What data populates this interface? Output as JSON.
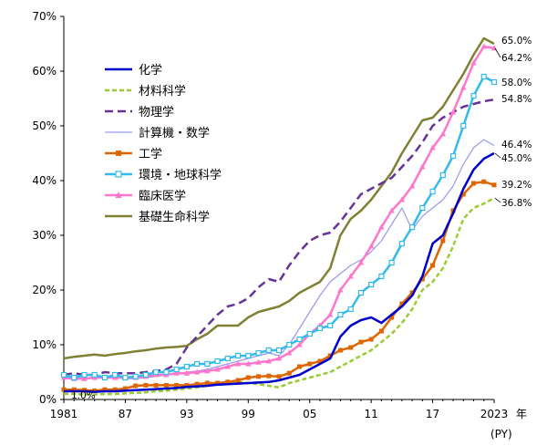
{
  "chart_data": {
    "type": "line",
    "title": "",
    "xlabel": "年",
    "x_unit": "(PY)",
    "ylabel": "",
    "ylim": [
      0,
      70
    ],
    "yticks": [
      "0%",
      "10%",
      "20%",
      "30%",
      "40%",
      "50%",
      "60%",
      "70%"
    ],
    "xtick_labels": [
      "1981",
      "87",
      "93",
      "99",
      "05",
      "11",
      "17",
      "2023"
    ],
    "x": [
      1981,
      1982,
      1983,
      1984,
      1985,
      1986,
      1987,
      1988,
      1989,
      1990,
      1991,
      1992,
      1993,
      1994,
      1995,
      1996,
      1997,
      1998,
      1999,
      2000,
      2001,
      2002,
      2003,
      2004,
      2005,
      2006,
      2007,
      2008,
      2009,
      2010,
      2011,
      2012,
      2013,
      2014,
      2015,
      2016,
      2017,
      2018,
      2019,
      2020,
      2021,
      2022,
      2023
    ],
    "annotation": "1.0%",
    "series": [
      {
        "name": "化学",
        "color": "#0000cc",
        "dash": "",
        "marker": "none",
        "end_label": "45.0%",
        "values": [
          1.5,
          1.5,
          1.5,
          1.4,
          1.5,
          1.5,
          1.6,
          1.7,
          1.8,
          1.9,
          2.0,
          2.1,
          2.3,
          2.4,
          2.5,
          2.7,
          2.8,
          2.9,
          3.0,
          3.1,
          3.2,
          3.5,
          4.0,
          4.5,
          5.5,
          6.5,
          7.5,
          11.5,
          13.5,
          14.5,
          15.0,
          14.0,
          15.5,
          17.0,
          19.0,
          22.5,
          28.5,
          30.0,
          34.0,
          38.5,
          42.0,
          44.0,
          45.0
        ]
      },
      {
        "name": "材料科学",
        "color": "#99cc33",
        "dash": "5,3",
        "marker": "none",
        "end_label": "36.8%",
        "values": [
          1.0,
          1.0,
          0.9,
          0.9,
          1.0,
          1.0,
          1.1,
          1.2,
          1.3,
          1.5,
          1.6,
          1.8,
          2.0,
          2.2,
          2.5,
          2.8,
          3.0,
          3.2,
          3.0,
          2.8,
          2.5,
          2.2,
          3.0,
          3.5,
          4.0,
          4.5,
          5.0,
          6.0,
          7.0,
          8.0,
          9.0,
          10.5,
          12.0,
          14.0,
          16.5,
          20.0,
          21.5,
          24.0,
          28.0,
          33.0,
          35.0,
          35.8,
          36.8
        ]
      },
      {
        "name": "物理学",
        "color": "#663399",
        "dash": "9,5",
        "marker": "none",
        "end_label": "54.8%",
        "values": [
          4.5,
          4.8,
          4.5,
          4.5,
          5.0,
          4.8,
          4.8,
          4.8,
          5.0,
          5.2,
          5.5,
          6.5,
          9.5,
          11.5,
          13.5,
          15.5,
          17.0,
          17.5,
          18.5,
          20.5,
          22.0,
          21.5,
          24.5,
          27.0,
          29.0,
          30.0,
          30.5,
          32.5,
          35.0,
          37.5,
          38.5,
          39.5,
          40.5,
          42.5,
          44.5,
          47.0,
          50.0,
          51.5,
          52.5,
          53.5,
          54.0,
          54.5,
          54.8
        ]
      },
      {
        "name": "計算機・数学",
        "color": "#9999ee",
        "dash": "",
        "marker": "none",
        "end_label": "46.4%",
        "values": [
          4.5,
          4.0,
          4.0,
          3.8,
          4.0,
          4.0,
          3.8,
          3.8,
          4.0,
          4.2,
          4.5,
          4.8,
          5.0,
          5.2,
          5.5,
          6.0,
          6.5,
          7.0,
          7.5,
          8.0,
          8.5,
          8.0,
          10.0,
          13.0,
          16.0,
          19.0,
          21.5,
          23.0,
          24.5,
          25.5,
          27.0,
          29.0,
          32.0,
          35.0,
          31.0,
          33.5,
          35.0,
          36.5,
          39.0,
          43.0,
          46.0,
          47.5,
          46.4
        ]
      },
      {
        "name": "工学",
        "color": "#dd6600",
        "dash": "",
        "marker": "square",
        "end_label": "39.2%",
        "values": [
          1.8,
          1.8,
          1.7,
          1.6,
          1.8,
          1.8,
          2.0,
          2.5,
          2.6,
          2.6,
          2.6,
          2.6,
          2.6,
          2.8,
          3.0,
          3.0,
          3.2,
          3.5,
          4.0,
          4.2,
          4.3,
          4.2,
          4.8,
          6.0,
          6.5,
          7.0,
          8.0,
          9.0,
          9.5,
          10.5,
          11.0,
          12.5,
          15.0,
          17.5,
          19.5,
          22.0,
          24.5,
          29.0,
          34.5,
          37.5,
          39.5,
          39.8,
          39.2
        ]
      },
      {
        "name": "環境・地球科学",
        "color": "#33bbee",
        "dash": "",
        "marker": "square-open",
        "end_label": "58.0%",
        "values": [
          4.5,
          4.0,
          4.5,
          4.5,
          4.0,
          4.5,
          4.0,
          4.2,
          4.5,
          5.0,
          5.0,
          5.5,
          6.0,
          6.5,
          6.5,
          7.0,
          7.5,
          8.0,
          8.0,
          8.5,
          9.0,
          9.0,
          10.0,
          11.0,
          12.0,
          13.0,
          13.5,
          15.5,
          16.5,
          19.5,
          21.0,
          22.5,
          25.0,
          28.5,
          31.5,
          35.0,
          38.0,
          41.0,
          44.5,
          50.0,
          55.5,
          59.0,
          58.0
        ]
      },
      {
        "name": "臨床医学",
        "color": "#ff77cc",
        "dash": "",
        "marker": "triangle",
        "end_label": "64.2%",
        "values": [
          4.0,
          3.8,
          3.8,
          4.0,
          4.0,
          4.0,
          4.0,
          4.0,
          4.2,
          4.5,
          4.5,
          4.8,
          4.8,
          5.0,
          5.2,
          5.5,
          6.0,
          6.5,
          6.5,
          6.8,
          7.0,
          7.5,
          8.5,
          10.0,
          12.0,
          13.5,
          15.5,
          20.0,
          22.5,
          25.0,
          28.0,
          31.5,
          34.5,
          36.5,
          39.0,
          42.5,
          46.0,
          48.5,
          52.5,
          57.0,
          61.5,
          64.5,
          64.2
        ]
      },
      {
        "name": "基礎生命科学",
        "color": "#808033",
        "dash": "",
        "marker": "none",
        "end_label": "65.0%",
        "values": [
          7.5,
          7.8,
          8.0,
          8.2,
          8.0,
          8.3,
          8.5,
          8.8,
          9.0,
          9.3,
          9.5,
          9.6,
          9.8,
          11.0,
          12.0,
          13.5,
          13.5,
          13.5,
          15.0,
          16.0,
          16.5,
          17.0,
          18.0,
          19.5,
          20.5,
          21.5,
          24.0,
          30.0,
          33.0,
          34.5,
          36.5,
          39.0,
          41.5,
          45.0,
          48.0,
          51.0,
          51.5,
          53.5,
          56.5,
          59.5,
          63.0,
          66.0,
          65.0
        ]
      }
    ]
  }
}
